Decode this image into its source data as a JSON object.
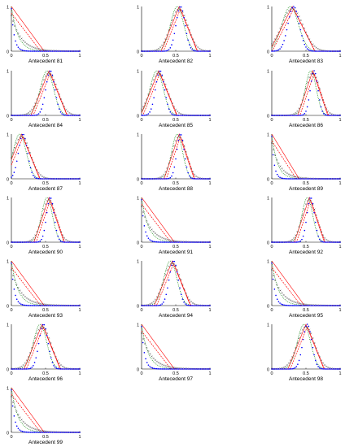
{
  "chart_data": {
    "type": "line",
    "layout": "small-multiples grid, 3 columns x 7 rows",
    "xlim": [
      0,
      1
    ],
    "ylim": [
      0,
      1
    ],
    "xticks": [
      "0",
      "0.5",
      "1"
    ],
    "yticks": [
      "0",
      "1"
    ],
    "grid": false,
    "legend": "none",
    "series_styles": [
      {
        "color": "#0000ff",
        "style": "dots"
      },
      {
        "color": "#008000",
        "style": "dotted"
      },
      {
        "color": "#ff0000",
        "style": "solid"
      },
      {
        "color": "#ff0000",
        "style": "dashed"
      },
      {
        "color": "#404040",
        "style": "x-markers"
      }
    ],
    "panels": [
      {
        "xlabel": "Antecedent 81",
        "shape": "decay",
        "peak": 0.0,
        "width": 0.12
      },
      {
        "xlabel": "Antecedent 82",
        "shape": "bell",
        "peak": 0.55,
        "width": 0.12
      },
      {
        "xlabel": "Antecedent 83",
        "shape": "bell",
        "peak": 0.3,
        "width": 0.15
      },
      {
        "xlabel": "Antecedent 84",
        "shape": "bell",
        "peak": 0.55,
        "width": 0.12
      },
      {
        "xlabel": "Antecedent 85",
        "shape": "bell",
        "peak": 0.25,
        "width": 0.12
      },
      {
        "xlabel": "Antecedent 86",
        "shape": "bell",
        "peak": 0.6,
        "width": 0.1
      },
      {
        "xlabel": "Antecedent 87",
        "shape": "bell",
        "peak": 0.15,
        "width": 0.12
      },
      {
        "xlabel": "Antecedent 88",
        "shape": "bell",
        "peak": 0.55,
        "width": 0.1
      },
      {
        "xlabel": "Antecedent 89",
        "shape": "decay",
        "peak": 0.05,
        "width": 0.1
      },
      {
        "xlabel": "Antecedent 90",
        "shape": "bell",
        "peak": 0.55,
        "width": 0.1
      },
      {
        "xlabel": "Antecedent 91",
        "shape": "decay",
        "peak": 0.02,
        "width": 0.12
      },
      {
        "xlabel": "Antecedent 92",
        "shape": "bell",
        "peak": 0.55,
        "width": 0.1
      },
      {
        "xlabel": "Antecedent 93",
        "shape": "decay",
        "peak": 0.02,
        "width": 0.12
      },
      {
        "xlabel": "Antecedent 94",
        "shape": "bell",
        "peak": 0.45,
        "width": 0.12
      },
      {
        "xlabel": "Antecedent 95",
        "shape": "decay",
        "peak": 0.05,
        "width": 0.12
      },
      {
        "xlabel": "Antecedent 96",
        "shape": "bell",
        "peak": 0.45,
        "width": 0.12
      },
      {
        "xlabel": "Antecedent 97",
        "shape": "decay",
        "peak": 0.02,
        "width": 0.12
      },
      {
        "xlabel": "Antecedent 98",
        "shape": "bell",
        "peak": 0.5,
        "width": 0.12
      },
      {
        "xlabel": "Antecedent 99",
        "shape": "decay",
        "peak": 0.02,
        "width": 0.12
      }
    ]
  }
}
